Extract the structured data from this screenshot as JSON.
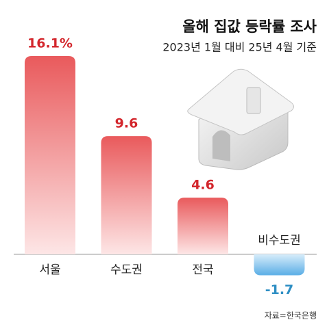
{
  "chart_data": {
    "type": "bar",
    "title": "올해 집값 등락률 조사",
    "subtitle": "2023년 1월 대비 25년 4월 기준",
    "source": "자료=한국은행",
    "categories": [
      "서울",
      "수도권",
      "전국",
      "비수도권"
    ],
    "values": [
      16.1,
      9.6,
      4.6,
      -1.7
    ],
    "value_labels": [
      "16.1%",
      "9.6",
      "4.6",
      "-1.7"
    ],
    "color": "#e95a5c",
    "negative_color": "#5aaee6",
    "label_color": "#d3262c",
    "negative_label_color": "#2f8fc4"
  }
}
